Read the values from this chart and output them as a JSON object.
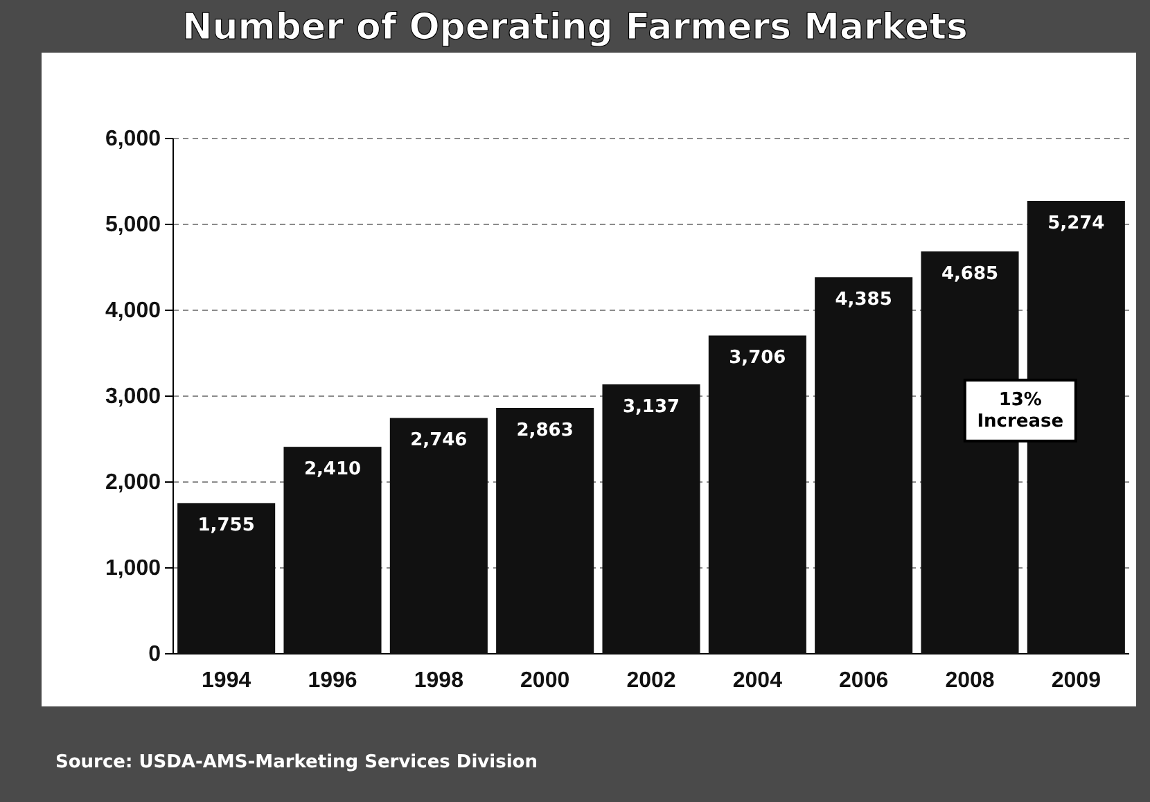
{
  "chart_data": {
    "type": "bar",
    "title": "Number of Operating Farmers Markets",
    "categories": [
      "1994",
      "1996",
      "1998",
      "2000",
      "2002",
      "2004",
      "2006",
      "2008",
      "2009"
    ],
    "values": [
      1755,
      2410,
      2746,
      2863,
      3137,
      3706,
      4385,
      4685,
      5274
    ],
    "color": "#111111",
    "ylim": [
      0,
      6000
    ],
    "yticks": [
      {
        "value": 0,
        "label": "0"
      },
      {
        "value": 1000,
        "label": "1,000"
      },
      {
        "value": 2000,
        "label": "2,000"
      },
      {
        "value": 3000,
        "label": "3,000"
      },
      {
        "value": 4000,
        "label": "4,000"
      },
      {
        "value": 5000,
        "label": "5,000"
      },
      {
        "value": 6000,
        "label": "6,000"
      }
    ],
    "grid": "y",
    "value_labels": [
      "1,755",
      "2,410",
      "2,746",
      "2,863",
      "3,137",
      "3,706",
      "4,385",
      "4,685",
      "5,274"
    ],
    "annotations": [
      "13% Increase",
      "Source:  USDA-AMS-Marketing Services Division"
    ]
  }
}
